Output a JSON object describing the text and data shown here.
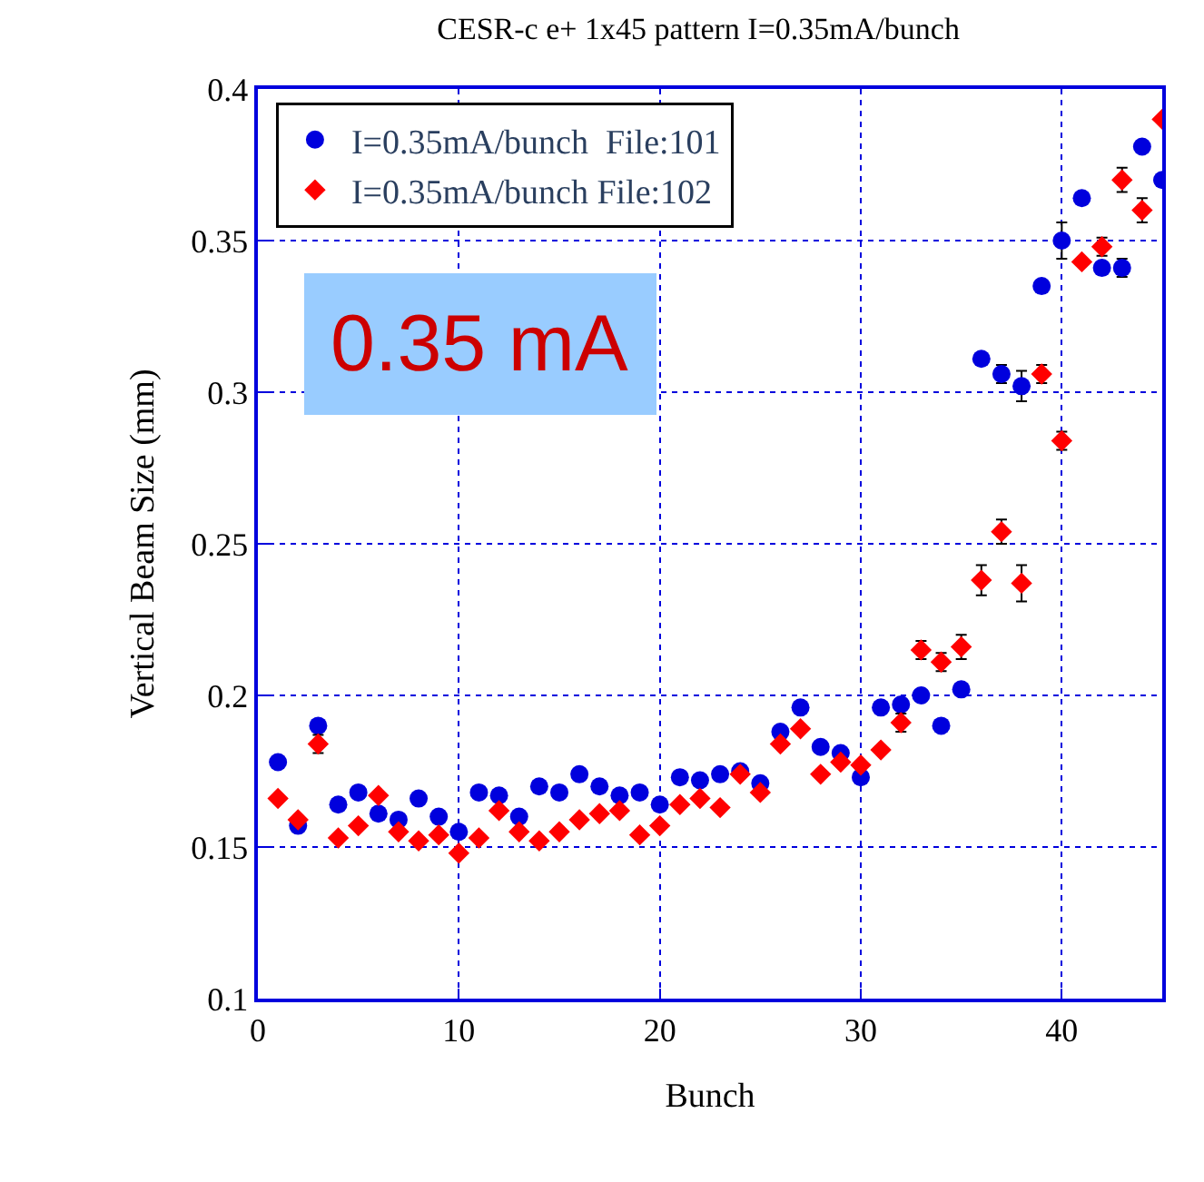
{
  "chart_data": {
    "type": "scatter",
    "title": "CESR-c e+ 1x45 pattern I=0.35mA/bunch",
    "xlabel": "Bunch",
    "ylabel": "Vertical Beam Size (mm)",
    "annotations": [
      "0.35 mA"
    ],
    "x": [
      1,
      2,
      3,
      4,
      5,
      6,
      7,
      8,
      9,
      10,
      11,
      12,
      13,
      14,
      15,
      16,
      17,
      18,
      19,
      20,
      21,
      22,
      23,
      24,
      25,
      26,
      27,
      28,
      29,
      30,
      31,
      32,
      33,
      34,
      35,
      36,
      37,
      38,
      39,
      40,
      41,
      42,
      43,
      44,
      45
    ],
    "series": [
      {
        "name": "I=0.35mA/bunch  File:101",
        "color": "#0000dd",
        "marker": "circle",
        "values": [
          0.178,
          0.157,
          0.19,
          0.164,
          0.168,
          0.161,
          0.159,
          0.166,
          0.16,
          0.155,
          0.168,
          0.167,
          0.16,
          0.17,
          0.168,
          0.174,
          0.17,
          0.167,
          0.168,
          0.164,
          0.173,
          0.172,
          0.174,
          0.175,
          0.171,
          0.188,
          0.196,
          0.183,
          0.181,
          0.173,
          0.196,
          0.197,
          0.2,
          0.19,
          0.202,
          0.311,
          0.306,
          0.302,
          0.335,
          0.35,
          0.364,
          0.341,
          0.341,
          0.381,
          0.37
        ],
        "errors": [
          null,
          null,
          null,
          null,
          null,
          null,
          null,
          null,
          null,
          null,
          null,
          null,
          null,
          null,
          null,
          null,
          null,
          null,
          null,
          null,
          null,
          null,
          null,
          null,
          null,
          null,
          null,
          null,
          null,
          null,
          null,
          null,
          null,
          null,
          null,
          null,
          0.003,
          0.005,
          null,
          0.006,
          null,
          null,
          0.003,
          null,
          null
        ]
      },
      {
        "name": "I=0.35mA/bunch File:102",
        "color": "#ff0000",
        "marker": "diamond",
        "values": [
          0.166,
          0.159,
          0.184,
          0.153,
          0.157,
          0.167,
          0.155,
          0.152,
          0.154,
          0.148,
          0.153,
          0.162,
          0.155,
          0.152,
          0.155,
          0.159,
          0.161,
          0.162,
          0.154,
          0.157,
          0.164,
          0.166,
          0.163,
          0.174,
          0.168,
          0.184,
          0.189,
          0.174,
          0.178,
          0.177,
          0.182,
          0.191,
          0.215,
          0.211,
          0.216,
          0.238,
          0.254,
          0.237,
          0.306,
          0.284,
          0.343,
          0.348,
          0.37,
          0.36,
          0.39
        ],
        "errors": [
          null,
          null,
          0.003,
          null,
          null,
          null,
          null,
          null,
          null,
          null,
          null,
          null,
          null,
          null,
          null,
          null,
          null,
          null,
          null,
          null,
          null,
          null,
          null,
          null,
          null,
          null,
          null,
          null,
          null,
          null,
          null,
          0.003,
          0.003,
          0.003,
          0.004,
          0.005,
          0.004,
          0.006,
          0.003,
          0.003,
          null,
          0.003,
          0.004,
          0.004,
          null
        ]
      }
    ],
    "xlim": [
      0,
      45
    ],
    "xticks": [
      0,
      10,
      20,
      30,
      40
    ],
    "ylim": [
      0.1,
      0.4
    ],
    "yticks": [
      0.1,
      0.15,
      0.2,
      0.25,
      0.3,
      0.35,
      0.4
    ],
    "grid": true,
    "legend": "top left"
  }
}
